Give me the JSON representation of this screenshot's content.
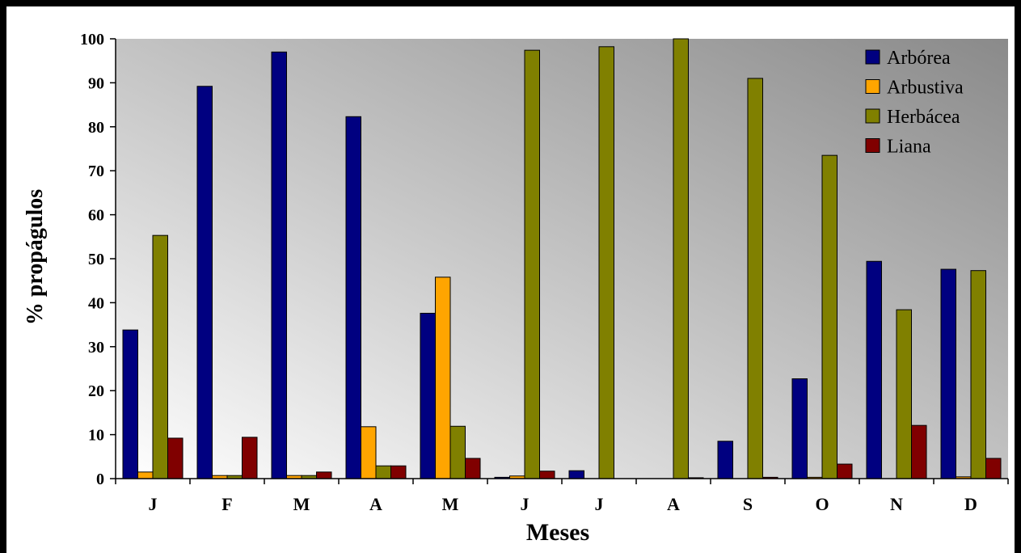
{
  "chart_data": {
    "type": "bar",
    "title": "",
    "xlabel": "Meses",
    "ylabel": "% propágulos",
    "ylim": [
      0,
      100
    ],
    "yticks": [
      0,
      10,
      20,
      30,
      40,
      50,
      60,
      70,
      80,
      90,
      100
    ],
    "categories": [
      "J",
      "F",
      "M",
      "A",
      "M",
      "J",
      "J",
      "A",
      "S",
      "O",
      "N",
      "D"
    ],
    "legend_position": "top-right",
    "grid": false,
    "series": [
      {
        "name": "Arbórea",
        "color": "#000080",
        "values": [
          33.8,
          89.2,
          97.0,
          82.3,
          37.6,
          0.3,
          1.8,
          0.0,
          8.5,
          22.7,
          49.4,
          47.6
        ]
      },
      {
        "name": "Arbustiva",
        "color": "#FFA500",
        "values": [
          1.5,
          0.7,
          0.7,
          11.8,
          45.8,
          0.6,
          0.0,
          0.0,
          0.0,
          0.3,
          0.0,
          0.4
        ]
      },
      {
        "name": "Herbácea",
        "color": "#808000",
        "values": [
          55.3,
          0.7,
          0.7,
          2.9,
          11.9,
          97.4,
          98.2,
          100.0,
          91.0,
          73.5,
          38.4,
          47.3
        ]
      },
      {
        "name": "Liana",
        "color": "#800000",
        "values": [
          9.2,
          9.4,
          1.5,
          2.9,
          4.6,
          1.7,
          0.0,
          0.2,
          0.3,
          3.3,
          12.1,
          4.6
        ]
      }
    ]
  }
}
